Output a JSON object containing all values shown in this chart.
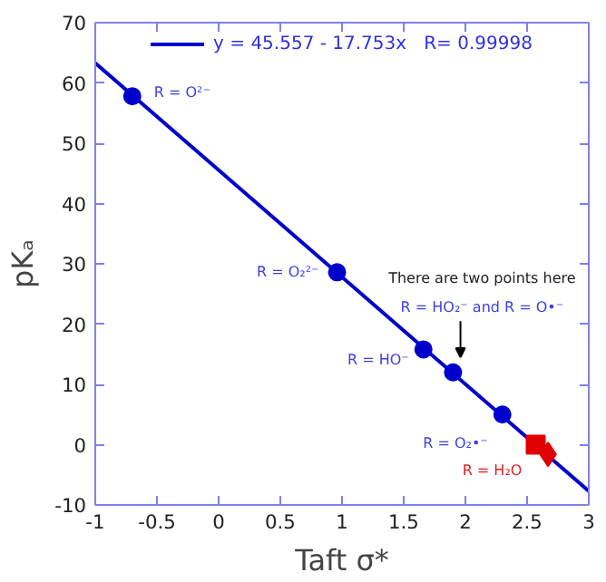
{
  "chart_data": {
    "type": "scatter",
    "xlabel": "Taft σ*",
    "ylabel": "pKₐ",
    "xlim": [
      -1,
      3
    ],
    "ylim": [
      -10,
      70
    ],
    "xticks": [
      -1,
      -0.5,
      0,
      0.5,
      1,
      1.5,
      2,
      2.5,
      3
    ],
    "yticks": [
      -10,
      0,
      10,
      20,
      30,
      40,
      50,
      60,
      70
    ],
    "grid": false,
    "legend": "top",
    "series": [
      {
        "type": "line",
        "name": "y = 45.557 - 17.753x   R= 0.99998",
        "color": "#0000cc",
        "x": [
          -1,
          3
        ],
        "values": [
          63.3,
          -7.7
        ],
        "marker": "none",
        "line_style": "solid"
      },
      {
        "color": "#0000cc",
        "x": [
          -0.7,
          0.96,
          1.66,
          1.9,
          2.3
        ],
        "values": [
          57.8,
          28.6,
          15.8,
          12.0,
          5.0
        ],
        "marker": "circle"
      },
      {
        "type": "scatter",
        "color": "#e00000",
        "x": [
          2.57
        ],
        "values": [
          0.0
        ],
        "marker": "square"
      },
      {
        "type": "scatter",
        "color": "#e00000",
        "x": [
          2.67
        ],
        "values": [
          -1.6
        ],
        "marker": "diamond"
      }
    ],
    "annotations": [
      "R = O²⁻",
      "R = O₂²⁻",
      "R = HO⁻",
      "There are two points here",
      "R = HO₂⁻ and R = O•⁻",
      "R = O₂•⁻",
      "R = H₂O"
    ]
  }
}
